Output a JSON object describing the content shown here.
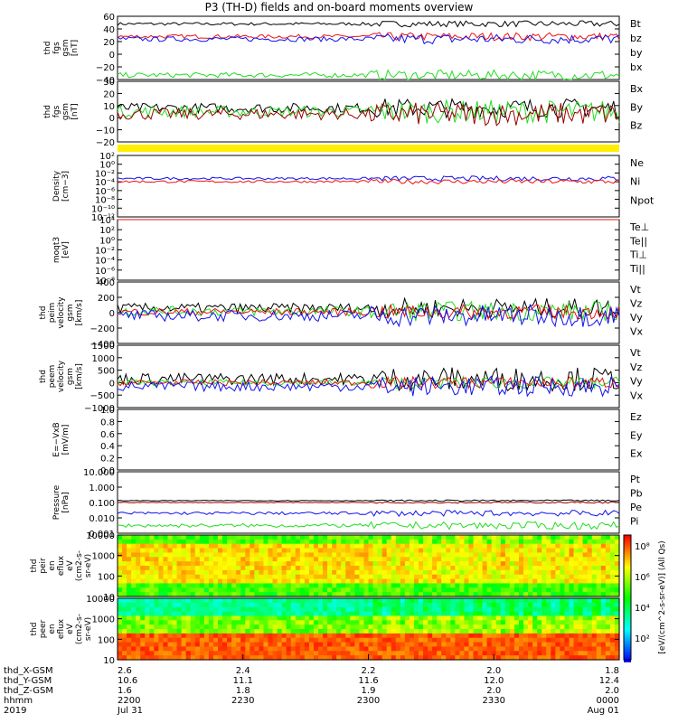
{
  "title": "P3 (TH-D) fields and on-board moments overview",
  "colors": {
    "black": "#000000",
    "red": "#ee1111",
    "green": "#22dd22",
    "blue": "#1111ee",
    "dred": "#990000",
    "yellow": "#ffee00"
  },
  "chart_data": [
    {
      "type": "line",
      "ylabel": [
        "thd",
        "fgs",
        "gsm",
        "[nT]"
      ],
      "yticks": [
        "60",
        "40",
        "20",
        "0",
        "−20",
        "−40"
      ],
      "ylim": [
        -40,
        60
      ],
      "legend": [
        {
          "text": "Bt",
          "color": "black"
        },
        {
          "text": "bz",
          "color": "red"
        },
        {
          "text": "by",
          "color": "green"
        },
        {
          "text": "bx",
          "color": "blue"
        }
      ],
      "series": [
        {
          "color": "black",
          "level": 48,
          "noise": 3
        },
        {
          "color": "red",
          "level": 28,
          "noise": 4
        },
        {
          "color": "blue",
          "level": 24,
          "noise": 5
        },
        {
          "color": "green",
          "level": -33,
          "noise": 5
        }
      ]
    },
    {
      "type": "line",
      "ylabel": [
        "thd",
        "fgs",
        "gsm",
        "[nT]"
      ],
      "yticks": [
        "30",
        "20",
        "10",
        "0",
        "−10",
        "−20"
      ],
      "ylim": [
        -20,
        30
      ],
      "legend": [
        {
          "text": "Bx",
          "color": "black"
        },
        {
          "text": "By",
          "color": "green"
        },
        {
          "text": "Bz",
          "color": "dred"
        }
      ],
      "series": [
        {
          "color": "black",
          "level": 8,
          "noise": 5
        },
        {
          "color": "green",
          "level": 5,
          "noise": 6
        },
        {
          "color": "dred",
          "level": 3,
          "noise": 6
        }
      ]
    },
    {
      "type": "line",
      "ylabel": [
        "Density",
        "[cm−3]"
      ],
      "yticks": [
        "10²",
        "10⁰",
        "10⁻²",
        "10⁻⁴",
        "10⁻⁶",
        "10⁻⁸",
        "10⁻¹⁰",
        "10⁻¹²"
      ],
      "yscale": "log",
      "legend": [
        {
          "text": "Ne",
          "color": "red"
        },
        {
          "text": "Ni",
          "color": "black"
        },
        {
          "text": "Npot",
          "color": "blue"
        }
      ],
      "series": [
        {
          "color": "blue",
          "level": 0.5,
          "noise": 0.1
        },
        {
          "color": "red",
          "level": 0.3,
          "noise": 0.1
        }
      ]
    },
    {
      "type": "line",
      "ylabel": [
        "moqt3",
        "[eV]"
      ],
      "yticks": [
        "10⁴",
        "10²",
        "10⁰",
        "10⁻²",
        "10⁻⁴",
        "10⁻⁶",
        "10⁻⁸"
      ],
      "yscale": "log",
      "legend": [
        {
          "text": "Te⊥",
          "color": "red"
        },
        {
          "text": "Te||",
          "color": "black"
        },
        {
          "text": "Ti⊥",
          "color": "blue"
        },
        {
          "text": "Ti||",
          "color": "green"
        }
      ],
      "series": [
        {
          "color": "green",
          "level": 3.8,
          "noise": 0.1
        },
        {
          "color": "blue",
          "level": 3.6,
          "noise": 0.1
        },
        {
          "color": "black",
          "level": 2.8,
          "noise": 0.1
        },
        {
          "color": "red",
          "level": 2.6,
          "noise": 0.1
        }
      ]
    },
    {
      "type": "line",
      "ylabel": [
        "thd",
        "peim",
        "velocity",
        "gsm",
        "[km/s]"
      ],
      "yticks": [
        "400",
        "200",
        "0",
        "−200",
        "−400"
      ],
      "ylim": [
        -400,
        400
      ],
      "legend": [
        {
          "text": "Vt",
          "color": "black"
        },
        {
          "text": "Vz",
          "color": "red"
        },
        {
          "text": "Vy",
          "color": "green"
        },
        {
          "text": "Vx",
          "color": "blue"
        }
      ],
      "series": [
        {
          "color": "black",
          "level": 60,
          "noise": 80
        },
        {
          "color": "green",
          "level": 20,
          "noise": 80
        },
        {
          "color": "red",
          "level": 10,
          "noise": 60
        },
        {
          "color": "blue",
          "level": -40,
          "noise": 90
        }
      ]
    },
    {
      "type": "line",
      "ylabel": [
        "thd",
        "peem",
        "velocity",
        "gsm",
        "[km/s]"
      ],
      "yticks": [
        "1500",
        "1000",
        "500",
        "0",
        "−500",
        "−1000"
      ],
      "ylim": [
        -1000,
        1500
      ],
      "legend": [
        {
          "text": "Vt",
          "color": "black"
        },
        {
          "text": "Vz",
          "color": "red"
        },
        {
          "text": "Vy",
          "color": "green"
        },
        {
          "text": "Vx",
          "color": "blue"
        }
      ],
      "series": [
        {
          "color": "black",
          "level": 150,
          "noise": 300
        },
        {
          "color": "green",
          "level": 0,
          "noise": 150
        },
        {
          "color": "red",
          "level": 0,
          "noise": 150
        },
        {
          "color": "blue",
          "level": -150,
          "noise": 250
        }
      ]
    },
    {
      "type": "line",
      "ylabel": [
        "E=−VxB",
        "[mV/m]"
      ],
      "yticks": [
        "1.0",
        "0.8",
        "0.6",
        "0.4",
        "0.2",
        "0.0"
      ],
      "ylim": [
        0,
        1
      ],
      "legend": [
        {
          "text": "Ez",
          "color": "red"
        },
        {
          "text": "Ey",
          "color": "green"
        },
        {
          "text": "Ex",
          "color": "blue"
        }
      ],
      "series": []
    },
    {
      "type": "line",
      "ylabel": [
        "Pressure",
        "[nPa]"
      ],
      "yticks": [
        "10.000",
        "1.000",
        "0.100",
        "0.010",
        "0.001"
      ],
      "yscale": "log",
      "legend": [
        {
          "text": "Pt",
          "color": "black"
        },
        {
          "text": "Pb",
          "color": "red"
        },
        {
          "text": "Pe",
          "color": "green"
        },
        {
          "text": "Pi",
          "color": "blue"
        }
      ],
      "series": [
        {
          "color": "black",
          "level": 0.12,
          "noise": 0.03
        },
        {
          "color": "dred",
          "level": 0.0,
          "noise": 0.03
        },
        {
          "color": "blue",
          "level": -0.7,
          "noise": 0.12
        },
        {
          "color": "green",
          "level": -1.5,
          "noise": 0.15
        }
      ]
    },
    {
      "type": "heatmap",
      "ylabel": [
        "thd",
        "peir",
        "en",
        "eflux",
        "eV",
        "(cm2-s-",
        "sr-eV)"
      ],
      "yticks": [
        "10000",
        "1000",
        "100",
        "10"
      ],
      "yscale": "log"
    },
    {
      "type": "heatmap",
      "ylabel": [
        "thd",
        "peer",
        "en",
        "eflux",
        "eV",
        "(cm2-s-",
        "sr-eV)"
      ],
      "yticks": [
        "10000",
        "1000",
        "100",
        "10"
      ],
      "yscale": "log",
      "colorbar": {
        "ticks": [
          "10⁸",
          "10⁶",
          "10⁴",
          "10²"
        ],
        "label": "[eV/(cm^2-s-sr-eV)] (All Qs)"
      }
    }
  ],
  "xaxis": {
    "rows": [
      {
        "label": "thd_X-GSM",
        "values": [
          "2.6",
          "2.4",
          "2.2",
          "2.0",
          "1.8"
        ]
      },
      {
        "label": "thd_Y-GSM",
        "values": [
          "10.6",
          "11.1",
          "11.6",
          "12.0",
          "12.4"
        ]
      },
      {
        "label": "thd_Z-GSM",
        "values": [
          "1.6",
          "1.8",
          "1.9",
          "2.0",
          "2.0"
        ]
      },
      {
        "label": "hhmm",
        "values": [
          "2200",
          "2230",
          "2300",
          "2330",
          "0000"
        ]
      },
      {
        "label": "2019",
        "values": [
          "Jul 31",
          "",
          "",
          "",
          "Aug 01"
        ]
      }
    ]
  }
}
